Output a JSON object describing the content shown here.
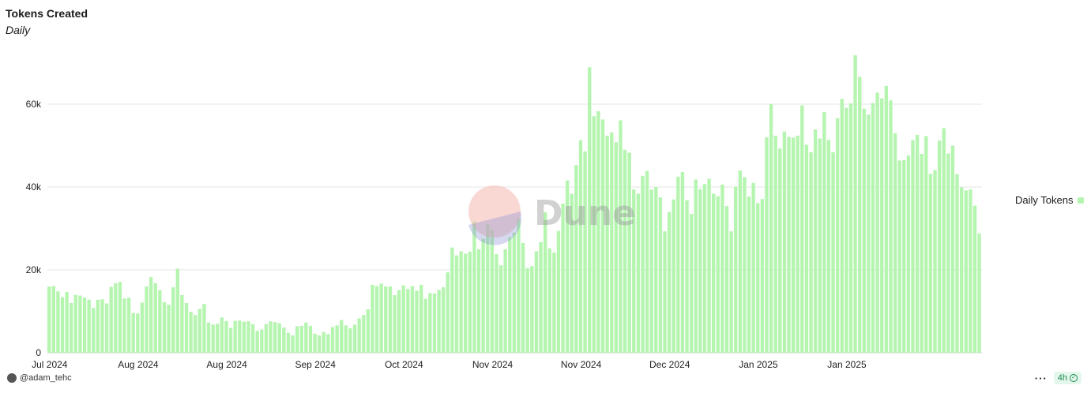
{
  "header": {
    "title": "Tokens Created",
    "subtitle": "Daily"
  },
  "watermark": {
    "text": "Dune"
  },
  "footer": {
    "author": "@adam_tehc",
    "more_label": "···",
    "refresh_label": "4h"
  },
  "colors": {
    "bar": "#b5f5b0",
    "grid": "#e6e6e6"
  },
  "chart_data": {
    "type": "bar",
    "title": "Tokens Created",
    "subtitle": "Daily",
    "xlabel": "",
    "ylabel": "",
    "ylim": [
      0,
      75000
    ],
    "y_ticks": [
      {
        "value": 0,
        "label": "0"
      },
      {
        "value": 20000,
        "label": "20k"
      },
      {
        "value": 40000,
        "label": "40k"
      },
      {
        "value": 60000,
        "label": "60k"
      }
    ],
    "x_tick_labels": [
      "Jul 2024",
      "Aug 2024",
      "Aug 2024",
      "Sep 2024",
      "Oct 2024",
      "Nov 2024",
      "Nov 2024",
      "Dec 2024",
      "Jan 2025",
      "Jan 2025"
    ],
    "x_tick_bar_index": [
      0,
      20,
      40,
      60,
      80,
      100,
      120,
      140,
      160,
      180
    ],
    "legend": {
      "position": "right",
      "entries": [
        "Daily Tokens"
      ]
    },
    "series": [
      {
        "name": "Daily Tokens",
        "values": [
          16000,
          16100,
          14800,
          13400,
          14700,
          12000,
          14000,
          13800,
          13300,
          12800,
          10800,
          12800,
          12900,
          11900,
          15900,
          16800,
          17100,
          13100,
          13300,
          9600,
          9500,
          12100,
          16000,
          18300,
          16800,
          15100,
          12200,
          11600,
          15800,
          20300,
          13900,
          12000,
          9900,
          9100,
          10600,
          11800,
          7300,
          6800,
          7000,
          8500,
          7700,
          6000,
          7700,
          7800,
          7500,
          7600,
          6900,
          5300,
          5600,
          6900,
          7600,
          7400,
          7100,
          6100,
          4800,
          4200,
          6400,
          6500,
          7300,
          6500,
          4600,
          4200,
          5000,
          4500,
          6200,
          6600,
          7900,
          6600,
          5900,
          6800,
          8300,
          9100,
          10500,
          16400,
          16100,
          16700,
          16000,
          16000,
          13900,
          15100,
          16300,
          15400,
          16100,
          15000,
          16400,
          13000,
          14400,
          14300,
          15200,
          15800,
          19400,
          25400,
          23500,
          24500,
          23900,
          24400,
          31700,
          25000,
          27500,
          31000,
          29600,
          23800,
          21100,
          25000,
          27900,
          29000,
          32300,
          26500,
          20400,
          20900,
          24500,
          26700,
          33900,
          25200,
          24200,
          29400,
          36000,
          41600,
          38400,
          45300,
          51300,
          48600,
          68900,
          57100,
          58300,
          56300,
          52400,
          53200,
          50800,
          56100,
          49000,
          48300,
          39400,
          38400,
          42700,
          43900,
          39400,
          40000,
          37500,
          29300,
          34000,
          37000,
          42500,
          43600,
          36800,
          33500,
          41800,
          39500,
          40700,
          42000,
          38400,
          37800,
          40600,
          35400,
          29300,
          40100,
          44000,
          42400,
          37700,
          41000,
          36100,
          37100,
          52000,
          60000,
          52400,
          49300,
          53400,
          52100,
          51900,
          52400,
          59700,
          50200,
          48400,
          53900,
          51700,
          58100,
          51400,
          48400,
          56600,
          61300,
          59100,
          60200,
          71800,
          66600,
          58900,
          57500,
          60300,
          62800,
          61400,
          64400,
          60900,
          53000,
          46400,
          46500,
          47600,
          51300,
          52600,
          48000,
          52300,
          43200,
          44100,
          51200,
          54200,
          48100,
          50000,
          43100,
          39900,
          39200,
          39400,
          35500,
          28800
        ]
      }
    ]
  }
}
